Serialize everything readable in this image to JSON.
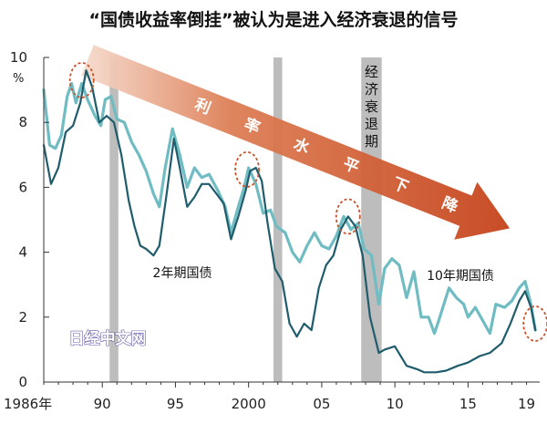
{
  "chart_data": {
    "type": "line",
    "title": "“国债收益率倒挂”被认为是进入经济衰退的信号",
    "ylabel": "%",
    "ylim": [
      0,
      10
    ],
    "yticks": [
      0,
      2,
      4,
      6,
      8,
      10
    ],
    "xlim": [
      1986,
      2019.9
    ],
    "xticks": [
      {
        "value": 1986,
        "label": "1986年"
      },
      {
        "value": 1990,
        "label": "90"
      },
      {
        "value": 1995,
        "label": "95"
      },
      {
        "value": 2000,
        "label": "2000"
      },
      {
        "value": 2005,
        "label": "05"
      },
      {
        "value": 2010,
        "label": "10"
      },
      {
        "value": 2015,
        "label": "15"
      },
      {
        "value": 2019,
        "label": "19"
      }
    ],
    "recession_bands": [
      [
        1990.5,
        1991.1
      ],
      [
        2001.7,
        2002.3
      ],
      [
        2007.7,
        2009.1
      ]
    ],
    "recession_label": "经济衰退期",
    "arrow_label": [
      "利",
      "率",
      "水",
      "平",
      "下",
      "降"
    ],
    "inversion_marks": [
      [
        1988.6,
        9.3
      ],
      [
        1999.9,
        6.55
      ],
      [
        2006.8,
        5.1
      ],
      [
        2019.6,
        1.8
      ]
    ],
    "series": [
      {
        "name": "10年期国债",
        "color": "#6fbcc2",
        "x": [
          1986.0,
          1986.4,
          1986.8,
          1987.2,
          1987.6,
          1987.9,
          1988.2,
          1988.6,
          1989.0,
          1989.5,
          1989.9,
          1990.2,
          1990.6,
          1991.0,
          1991.5,
          1992.0,
          1992.5,
          1993.0,
          1993.5,
          1993.9,
          1994.3,
          1994.8,
          1995.3,
          1995.8,
          1996.3,
          1996.8,
          1997.3,
          1997.9,
          1998.4,
          1998.8,
          1999.3,
          1999.7,
          2000.0,
          2000.5,
          2001.0,
          2001.5,
          2001.9,
          2002.5,
          2003.0,
          2003.5,
          2004.0,
          2004.5,
          2005.0,
          2005.5,
          2006.0,
          2006.5,
          2007.0,
          2007.5,
          2007.9,
          2008.4,
          2008.9,
          2009.3,
          2009.8,
          2010.3,
          2010.8,
          2011.3,
          2011.8,
          2012.3,
          2012.7,
          2013.0,
          2013.7,
          2014.2,
          2014.7,
          2015.0,
          2015.5,
          2016.0,
          2016.5,
          2016.9,
          2017.5,
          2018.0,
          2018.5,
          2018.9,
          2019.3,
          2019.6
        ],
        "values": [
          9.0,
          7.3,
          7.2,
          7.6,
          8.8,
          9.2,
          8.6,
          9.2,
          8.7,
          8.2,
          7.9,
          8.7,
          8.8,
          8.1,
          8.0,
          7.4,
          7.0,
          6.5,
          5.8,
          5.4,
          6.6,
          7.8,
          7.0,
          6.0,
          6.6,
          6.3,
          6.4,
          5.9,
          5.4,
          4.6,
          5.4,
          6.0,
          6.6,
          6.1,
          5.2,
          5.3,
          4.8,
          4.6,
          4.0,
          3.7,
          4.2,
          4.6,
          4.2,
          4.1,
          4.5,
          5.1,
          4.7,
          4.9,
          4.1,
          3.9,
          2.4,
          3.5,
          3.8,
          3.6,
          2.6,
          3.4,
          2.0,
          2.0,
          1.5,
          1.9,
          2.9,
          2.6,
          2.4,
          2.0,
          2.3,
          1.9,
          1.5,
          2.4,
          2.3,
          2.5,
          2.9,
          3.1,
          2.4,
          1.6
        ]
      },
      {
        "name": "2年期国债",
        "color": "#1f5c6c",
        "x": [
          1986.0,
          1986.5,
          1987.0,
          1987.5,
          1988.0,
          1988.5,
          1988.9,
          1989.3,
          1989.8,
          1990.3,
          1990.8,
          1991.3,
          1991.8,
          1992.2,
          1992.6,
          1993.0,
          1993.5,
          1993.9,
          1994.4,
          1994.9,
          1995.3,
          1995.8,
          1996.3,
          1996.8,
          1997.3,
          1997.8,
          1998.3,
          1998.8,
          1999.3,
          1999.8,
          2000.1,
          2000.5,
          2000.9,
          2001.3,
          2001.8,
          2002.3,
          2002.8,
          2003.3,
          2003.8,
          2004.3,
          2004.8,
          2005.3,
          2005.8,
          2006.3,
          2006.8,
          2007.3,
          2007.8,
          2008.3,
          2008.9,
          2009.3,
          2010.0,
          2010.8,
          2011.5,
          2012.0,
          2012.8,
          2013.5,
          2014.3,
          2015.0,
          2015.8,
          2016.5,
          2017.3,
          2017.9,
          2018.5,
          2018.9,
          2019.3,
          2019.6
        ],
        "values": [
          7.3,
          6.1,
          6.6,
          7.7,
          7.9,
          8.6,
          9.6,
          9.1,
          8.0,
          8.2,
          8.0,
          7.0,
          5.6,
          4.8,
          4.2,
          4.1,
          3.9,
          4.2,
          5.8,
          7.5,
          6.6,
          5.4,
          5.7,
          6.1,
          6.1,
          5.8,
          5.5,
          4.4,
          5.1,
          5.9,
          6.5,
          6.6,
          6.2,
          4.9,
          3.5,
          3.1,
          1.8,
          1.4,
          1.8,
          1.6,
          2.9,
          3.6,
          3.9,
          4.7,
          5.1,
          4.8,
          3.9,
          2.0,
          0.9,
          1.0,
          1.1,
          0.5,
          0.4,
          0.3,
          0.3,
          0.35,
          0.5,
          0.6,
          0.8,
          0.9,
          1.2,
          1.8,
          2.5,
          2.8,
          2.3,
          1.6
        ]
      }
    ]
  },
  "watermark": "日经中文网"
}
